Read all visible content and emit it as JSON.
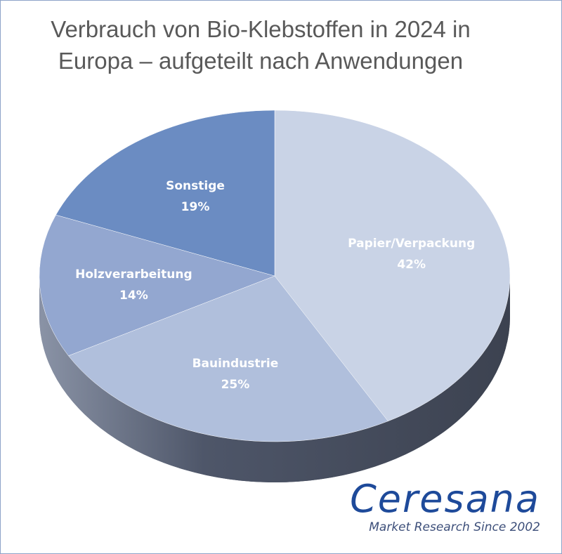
{
  "chart_data": {
    "type": "pie",
    "title": "Verbrauch von Bio-Klebstoffen in 2024 in Europa – aufgeteilt nach Anwendungen",
    "slices": [
      {
        "label": "Papier/Verpackung",
        "value": 42,
        "value_label": "42%",
        "color": "#c9d3e6"
      },
      {
        "label": "Bauindustrie",
        "value": 25,
        "value_label": "25%",
        "color": "#b0bfdc"
      },
      {
        "label": "Holzverarbeitung",
        "value": 14,
        "value_label": "14%",
        "color": "#93a7d0"
      },
      {
        "label": "Sonstige",
        "value": 19,
        "value_label": "19%",
        "color": "#6b8cc2"
      }
    ],
    "style": "3d"
  },
  "logo": {
    "name": "Ceresana",
    "tagline": "Market Research Since 2002"
  }
}
